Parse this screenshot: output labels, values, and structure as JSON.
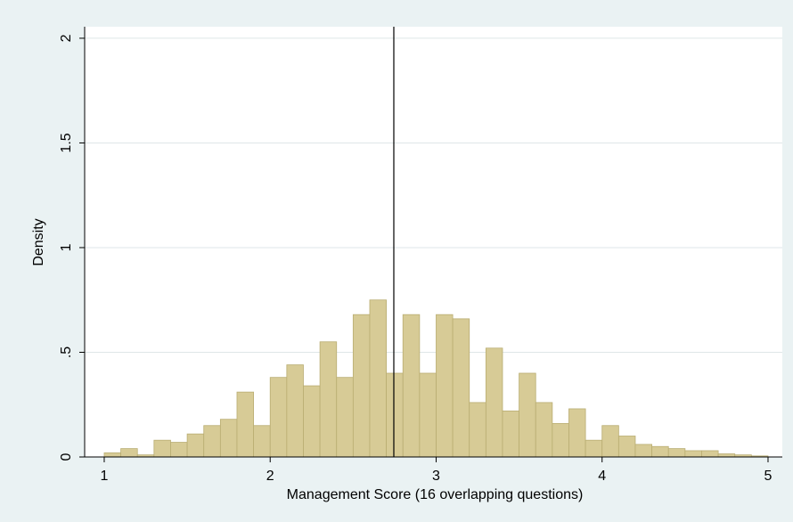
{
  "chart_data": {
    "type": "histogram",
    "xlabel": "Management Score (16 overlapping questions)",
    "ylabel": "Density",
    "bins": [
      1,
      1.1,
      1.2,
      1.3,
      1.4,
      1.5,
      1.6,
      1.7,
      1.8,
      1.9,
      2,
      2.1,
      2.2,
      2.3,
      2.4,
      2.5,
      2.6,
      2.7,
      2.8,
      2.9,
      3,
      3.1,
      3.2,
      3.3,
      3.4,
      3.5,
      3.6,
      3.7,
      3.8,
      3.9,
      4,
      4.1,
      4.2,
      4.3,
      4.4,
      4.5,
      4.6,
      4.7,
      4.8,
      4.9,
      5
    ],
    "values": [
      0.02,
      0.04,
      0.01,
      0.08,
      0.07,
      0.11,
      0.15,
      0.18,
      0.31,
      0.15,
      0.38,
      0.44,
      0.34,
      0.55,
      0.38,
      0.68,
      0.75,
      0.4,
      0.68,
      0.4,
      0.68,
      0.66,
      0.26,
      0.52,
      0.22,
      0.4,
      0.26,
      0.16,
      0.23,
      0.08,
      0.15,
      0.1,
      0.06,
      0.05,
      0.04,
      0.03,
      0.03,
      0.015,
      0.01,
      0.005
    ],
    "color": "#d7cb96",
    "edgecolor": "#b9ad72",
    "vline": 2.745,
    "xlim": [
      0.882,
      5.086
    ],
    "ylim": [
      0,
      2.055
    ],
    "xticks": [
      1,
      2,
      3,
      4,
      5
    ],
    "yticks": [
      0,
      {
        "value": 0.5,
        "label": ".5"
      },
      1,
      1.5,
      2
    ],
    "grid": true
  }
}
